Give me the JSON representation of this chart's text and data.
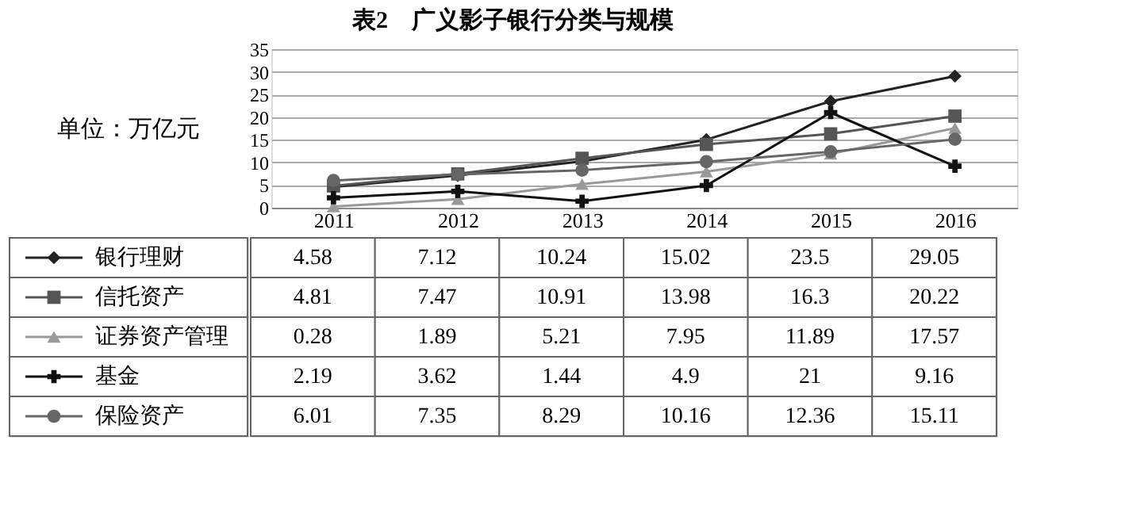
{
  "chart_data": {
    "type": "line",
    "title": "表2　广义影子银行分类与规模",
    "annotations": [
      "单位：万亿元"
    ],
    "categories": [
      "2011",
      "2012",
      "2013",
      "2014",
      "2015",
      "2016"
    ],
    "series": [
      {
        "name": "银行理财",
        "color": "#222222",
        "marker": "diamond",
        "values": [
          4.58,
          7.12,
          10.24,
          15.02,
          23.5,
          29.05
        ]
      },
      {
        "name": "信托资产",
        "color": "#555555",
        "marker": "square",
        "values": [
          4.81,
          7.47,
          10.91,
          13.98,
          16.3,
          20.22
        ]
      },
      {
        "name": "证券资产管理",
        "color": "#999999",
        "marker": "triangle",
        "values": [
          0.28,
          1.89,
          5.21,
          7.95,
          11.89,
          17.57
        ]
      },
      {
        "name": "基金",
        "color": "#111111",
        "marker": "cross",
        "values": [
          2.19,
          3.62,
          1.44,
          4.9,
          21,
          9.16
        ]
      },
      {
        "name": "保险资产",
        "color": "#666666",
        "marker": "circle",
        "values": [
          6.01,
          7.35,
          8.29,
          10.16,
          12.36,
          15.11
        ]
      }
    ],
    "ylim": [
      0,
      35
    ],
    "yticks": [
      0,
      5,
      10,
      15,
      20,
      25,
      30,
      35
    ],
    "grid": "y",
    "legend": "bottom",
    "data_labels": true
  }
}
